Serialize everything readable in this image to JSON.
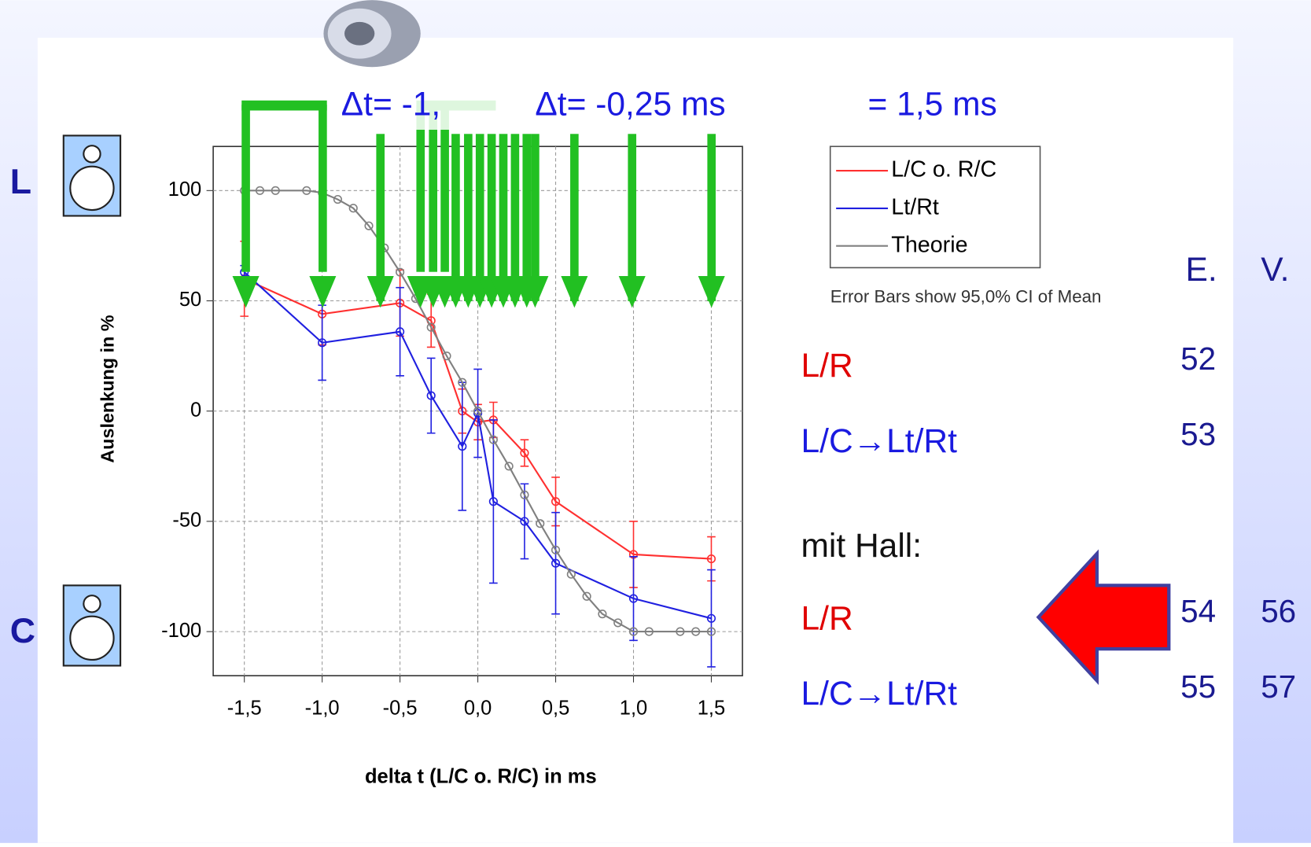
{
  "chart_data": {
    "type": "line",
    "xlabel": "delta t (L/C o. R/C) in ms",
    "ylabel": "Auslenkung in %",
    "note": "Error Bars show 95,0% CI of Mean",
    "xlim": [
      -1.7,
      1.7
    ],
    "ylim": [
      -120,
      120
    ],
    "xticks": [
      {
        "value": -1.5,
        "label": "-1,5"
      },
      {
        "value": -1.0,
        "label": "-1,0"
      },
      {
        "value": -0.5,
        "label": "-0,5"
      },
      {
        "value": 0.0,
        "label": "0,0"
      },
      {
        "value": 0.5,
        "label": "0,5"
      },
      {
        "value": 1.0,
        "label": "1,0"
      },
      {
        "value": 1.5,
        "label": "1,5"
      }
    ],
    "yticks": [
      100,
      50,
      0,
      -50,
      -100
    ],
    "grid": true,
    "series": [
      {
        "name": "L/C o. R/C",
        "color": "#ff3030",
        "x": [
          -1.5,
          -1.0,
          -0.5,
          -0.3,
          -0.1,
          0.0,
          0.1,
          0.3,
          0.5,
          1.0,
          1.5
        ],
        "values": [
          60,
          44,
          49,
          41,
          0,
          -5,
          -4,
          -19,
          -41,
          -65,
          -67
        ],
        "errors": [
          17,
          14,
          15,
          12,
          10,
          8,
          8,
          6,
          11,
          15,
          10
        ]
      },
      {
        "name": "Lt/Rt",
        "color": "#2020e0",
        "x": [
          -1.5,
          -1.0,
          -0.5,
          -0.3,
          -0.1,
          0.0,
          0.1,
          0.3,
          0.5,
          1.0,
          1.5
        ],
        "values": [
          63,
          31,
          36,
          7,
          -16,
          -1,
          -41,
          -50,
          -69,
          -85,
          -94
        ],
        "errors": [
          3,
          17,
          20,
          17,
          29,
          20,
          37,
          17,
          23,
          19,
          22
        ]
      },
      {
        "name": "Theorie",
        "color": "#808080",
        "x": [
          -1.5,
          -1.4,
          -1.3,
          -1.1,
          -1.0,
          -0.9,
          -0.8,
          -0.7,
          -0.6,
          -0.5,
          -0.4,
          -0.3,
          -0.2,
          -0.1,
          0.0,
          0.1,
          0.2,
          0.3,
          0.4,
          0.5,
          0.6,
          0.7,
          0.8,
          0.9,
          1.0,
          1.1,
          1.3,
          1.4,
          1.5
        ],
        "values": [
          100,
          100,
          100,
          100,
          99,
          96,
          92,
          84,
          74,
          63,
          51,
          38,
          25,
          13,
          0,
          -13,
          -25,
          -38,
          -51,
          -63,
          -74,
          -84,
          -92,
          -96,
          -100,
          -100,
          -100,
          -100,
          -100
        ]
      }
    ]
  },
  "slide": {
    "speaker_top": "L",
    "speaker_bottom": "C",
    "headline": [
      "Δt= -1,",
      "Δt= -0,25 ms",
      "= 1,5 ms"
    ],
    "columns": [
      "E.",
      "V."
    ],
    "rows": [
      {
        "label": "L/R",
        "e": "52"
      },
      {
        "label": "L/C→Lt/Rt",
        "e": "53"
      },
      {
        "label": "mit Hall:"
      },
      {
        "label": "L/R",
        "e": "54",
        "v": "56"
      },
      {
        "label": "L/C→Lt/Rt",
        "e": "55",
        "v": "57"
      }
    ]
  }
}
